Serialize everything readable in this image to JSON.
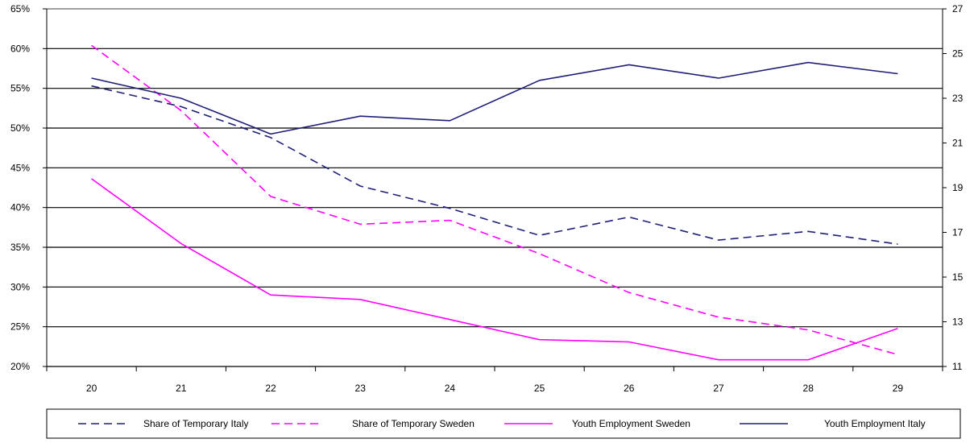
{
  "chart_data": {
    "type": "line",
    "title": "",
    "xlabel": "",
    "ylabel": "",
    "x": [
      20,
      21,
      22,
      23,
      24,
      25,
      26,
      27,
      28,
      29
    ],
    "x_tick_labels": [
      "20",
      "21",
      "22",
      "23",
      "24",
      "25",
      "26",
      "27",
      "28",
      "29"
    ],
    "left_axis": {
      "ylim": [
        20,
        65
      ],
      "ticks": [
        20,
        25,
        30,
        35,
        40,
        45,
        50,
        55,
        60,
        65
      ],
      "tick_labels": [
        "20%",
        "25%",
        "30%",
        "35%",
        "40%",
        "45%",
        "50%",
        "55%",
        "60%",
        "65%"
      ]
    },
    "right_axis": {
      "ylim": [
        11,
        27
      ],
      "ticks": [
        11,
        13,
        15,
        17,
        19,
        21,
        23,
        25,
        27
      ],
      "tick_labels": [
        "11",
        "13",
        "15",
        "17",
        "19",
        "21",
        "23",
        "25",
        "27"
      ]
    },
    "grid": "horizontal",
    "legend_position": "bottom",
    "series": [
      {
        "name": "Share of Temporary Italy",
        "axis": "left",
        "color": "#1f1f7a",
        "dash": "dashed",
        "values": [
          55.3,
          52.7,
          48.8,
          42.7,
          39.9,
          36.5,
          38.8,
          35.9,
          37.0,
          35.4
        ]
      },
      {
        "name": "Share of Temporary Sweden",
        "axis": "left",
        "color": "#ff00ff",
        "dash": "dashed",
        "values": [
          60.4,
          52.2,
          41.4,
          37.9,
          38.4,
          34.2,
          29.3,
          26.2,
          24.6,
          21.5
        ]
      },
      {
        "name": "Youth Employment Sweden",
        "axis": "right",
        "color": "#ff00ff",
        "dash": "solid",
        "values": [
          19.4,
          16.5,
          14.2,
          14.0,
          13.1,
          12.2,
          12.1,
          11.3,
          11.3,
          12.7
        ]
      },
      {
        "name": "Youth Employment Italy",
        "axis": "right",
        "color": "#1f1f7a",
        "dash": "solid",
        "values": [
          23.9,
          23.0,
          21.4,
          22.2,
          22.0,
          23.8,
          24.5,
          23.9,
          24.6,
          24.1
        ]
      }
    ]
  }
}
